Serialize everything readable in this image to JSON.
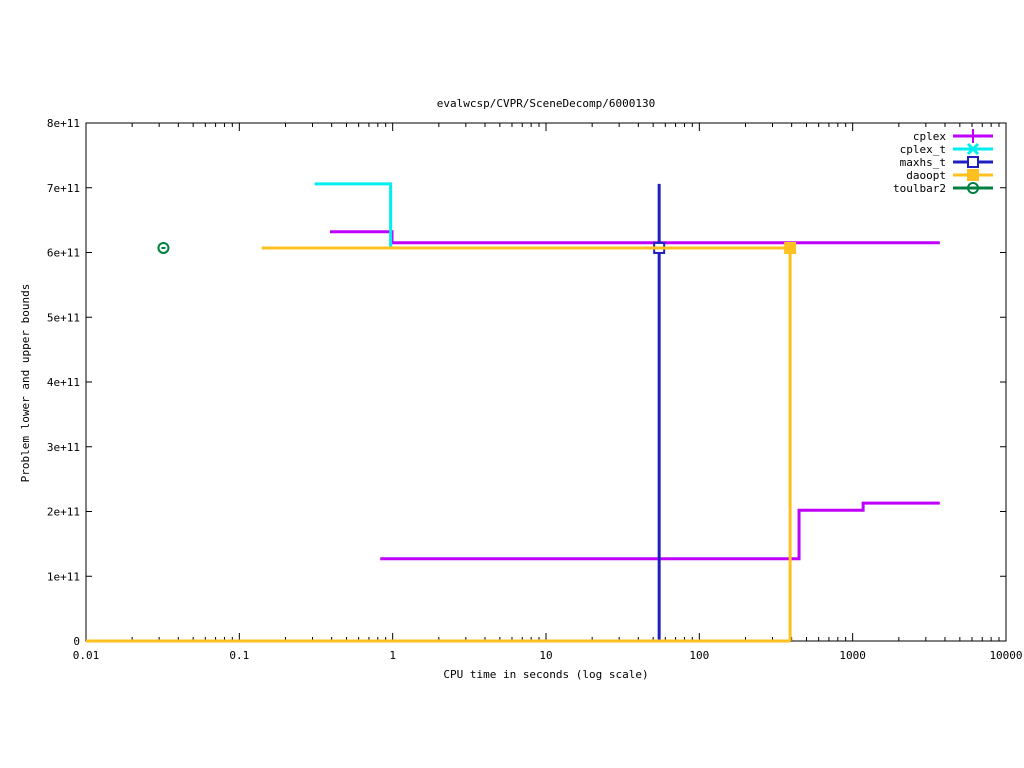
{
  "chart_data": {
    "type": "line",
    "title": "evalwcsp/CVPR/SceneDecomp/6000130",
    "xlabel": "CPU time in seconds (log scale)",
    "ylabel": "Problem lower and upper bounds",
    "xscale": "log",
    "xlim": [
      0.01,
      10000
    ],
    "ylim": [
      0,
      800000000000
    ],
    "xticks": [
      0.01,
      0.1,
      1,
      10,
      100,
      1000,
      10000
    ],
    "xtick_labels": [
      "0.01",
      "0.1",
      "1",
      "10",
      "100",
      "1000",
      "10000"
    ],
    "yticks": [
      0,
      100000000000,
      200000000000,
      300000000000,
      400000000000,
      500000000000,
      600000000000,
      700000000000,
      800000000000
    ],
    "ytick_labels": [
      "0",
      "1e+11",
      "2e+11",
      "3e+11",
      "4e+11",
      "5e+11",
      "6e+11",
      "7e+11",
      "8e+11"
    ],
    "grid": false,
    "legend_position": "top-right",
    "series": [
      {
        "name": "cplex",
        "color": "#c000ff",
        "marker": "plus",
        "lines": [
          [
            [
              0.39,
              632000000000
            ],
            [
              0.99,
              632000000000
            ],
            [
              0.99,
              615000000000
            ],
            [
              3700,
              615000000000
            ]
          ],
          [
            [
              0.83,
              127000000000
            ],
            [
              447,
              127000000000
            ],
            [
              447,
              202000000000
            ],
            [
              1170,
              202000000000
            ],
            [
              1170,
              213000000000
            ],
            [
              3700,
              213000000000
            ]
          ]
        ],
        "markers": []
      },
      {
        "name": "cplex_t",
        "color": "#00eeee",
        "marker": "cross",
        "lines": [
          [
            [
              0.31,
              706000000000
            ],
            [
              0.97,
              706000000000
            ],
            [
              0.97,
              607000000000
            ]
          ]
        ],
        "markers": []
      },
      {
        "name": "maxhs_t",
        "color": "#2020c0",
        "marker": "open-square",
        "lines": [
          [
            [
              54.7,
              706000000000
            ],
            [
              54.7,
              0
            ]
          ]
        ],
        "markers": [
          [
            54.7,
            607000000000
          ]
        ]
      },
      {
        "name": "daoopt",
        "color": "#ffc020",
        "marker": "filled-square",
        "lines": [
          [
            [
              0.14,
              607000000000
            ],
            [
              391,
              607000000000
            ],
            [
              391,
              0
            ]
          ],
          [
            [
              0.01,
              0
            ],
            [
              391,
              0
            ]
          ]
        ],
        "markers": [
          [
            391,
            607000000000
          ]
        ]
      },
      {
        "name": "toulbar2",
        "color": "#008040",
        "marker": "circle",
        "lines": [],
        "markers": [
          [
            0.032,
            607000000000
          ]
        ]
      }
    ]
  }
}
